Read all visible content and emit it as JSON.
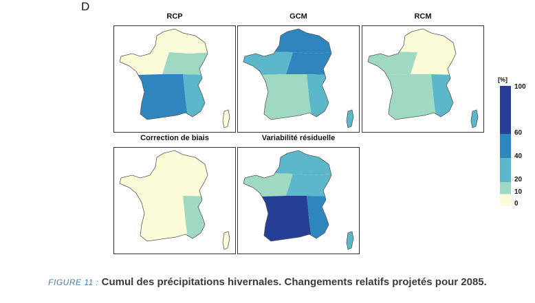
{
  "panel_letter": "D",
  "maps": [
    {
      "title": "RCP",
      "colors": [
        "#fdfcd8",
        "#fdfcd8",
        "#9fd9c2",
        "#5cb7cb",
        "#2f86be",
        "#fdfcd8"
      ]
    },
    {
      "title": "GCM",
      "colors": [
        "#2f86be",
        "#5cb7cb",
        "#2f86be",
        "#5cb7cb",
        "#9fd9c2",
        "#5cb7cb"
      ]
    },
    {
      "title": "RCM",
      "colors": [
        "#fdfcd8",
        "#9fd9c2",
        "#fdfcd8",
        "#5cb7cb",
        "#9fd9c2",
        "#5cb7cb"
      ]
    },
    {
      "title": "Correction de biais",
      "colors": [
        "#fdfcd8",
        "#fdfcd8",
        "#fdfcd8",
        "#9fd9c2",
        "#fdfcd8",
        "#fdfcd8"
      ]
    },
    {
      "title": "Variabilité résiduelle",
      "colors": [
        "#5cb7cb",
        "#9fd9c2",
        "#5cb7cb",
        "#2f86be",
        "#243f95",
        "#5cb7cb"
      ]
    }
  ],
  "legend": {
    "unit": "[%]",
    "ticks": [
      "100",
      "60",
      "40",
      "20",
      "10",
      "0"
    ],
    "bands": [
      {
        "from": 60,
        "to": 100,
        "color": "#243f95"
      },
      {
        "from": 40,
        "to": 60,
        "color": "#2f86be"
      },
      {
        "from": 20,
        "to": 40,
        "color": "#5cb7cb"
      },
      {
        "from": 10,
        "to": 20,
        "color": "#9fd9c2"
      },
      {
        "from": 0,
        "to": 10,
        "color": "#fdfcd8"
      }
    ]
  },
  "caption": {
    "figure_label": "FIGURE 11 :",
    "text": "Cumul des précipitations hivernales. Changements relatifs projetés pour 2085."
  }
}
